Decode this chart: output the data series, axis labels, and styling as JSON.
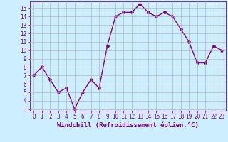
{
  "x": [
    0,
    1,
    2,
    3,
    4,
    5,
    6,
    7,
    8,
    9,
    10,
    11,
    12,
    13,
    14,
    15,
    16,
    17,
    18,
    19,
    20,
    21,
    22,
    23
  ],
  "y": [
    7.0,
    8.0,
    6.5,
    5.0,
    5.5,
    3.0,
    5.0,
    6.5,
    5.5,
    10.5,
    14.0,
    14.5,
    14.5,
    15.5,
    14.5,
    14.0,
    14.5,
    14.0,
    12.5,
    11.0,
    8.5,
    8.5,
    10.5,
    10.0
  ],
  "line_color": "#800080",
  "marker": "*",
  "marker_size": 3,
  "bg_color": "#cceeff",
  "grid_color": "#aaaaaa",
  "xlabel": "Windchill (Refroidissement éolien,°C)",
  "xlim": [
    -0.5,
    23.5
  ],
  "ylim": [
    2.8,
    15.8
  ],
  "yticks": [
    3,
    4,
    5,
    6,
    7,
    8,
    9,
    10,
    11,
    12,
    13,
    14,
    15
  ],
  "xticks": [
    0,
    1,
    2,
    3,
    4,
    5,
    6,
    7,
    8,
    9,
    10,
    11,
    12,
    13,
    14,
    15,
    16,
    17,
    18,
    19,
    20,
    21,
    22,
    23
  ],
  "tick_color": "#800080",
  "label_color": "#800080",
  "tick_fontsize": 5.5,
  "xlabel_fontsize": 6.5,
  "linewidth": 1.0
}
